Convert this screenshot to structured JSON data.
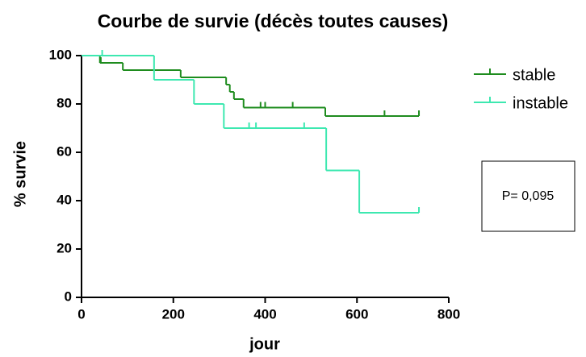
{
  "chart_data": {
    "type": "step",
    "title": "Courbe de survie (décès toutes causes)",
    "x_label": "jour",
    "y_label": "% survie",
    "annotation": "P= 0,095",
    "xlim": [
      0,
      800
    ],
    "xticks": [
      0,
      200,
      400,
      600,
      800
    ],
    "ylim": [
      0,
      100
    ],
    "yticks": [
      0,
      20,
      40,
      60,
      80,
      100
    ],
    "legend": "right",
    "series": [
      {
        "name": "stable",
        "color": "#1e8c1e",
        "x": [
          0,
          40,
          90,
          216,
          315,
          323,
          332,
          353,
          531,
          735
        ],
        "values": [
          100,
          97,
          94,
          91,
          88,
          85,
          82,
          78.5,
          75,
          75
        ],
        "censored_x": [
          42,
          390,
          400,
          460,
          660,
          735
        ]
      },
      {
        "name": "instable",
        "color": "#3de8b0",
        "x": [
          0,
          158,
          245,
          310,
          533,
          605,
          735
        ],
        "values": [
          100,
          90,
          80,
          70,
          52.5,
          35,
          35
        ],
        "censored_x": [
          45,
          365,
          380,
          485,
          735
        ]
      }
    ]
  }
}
